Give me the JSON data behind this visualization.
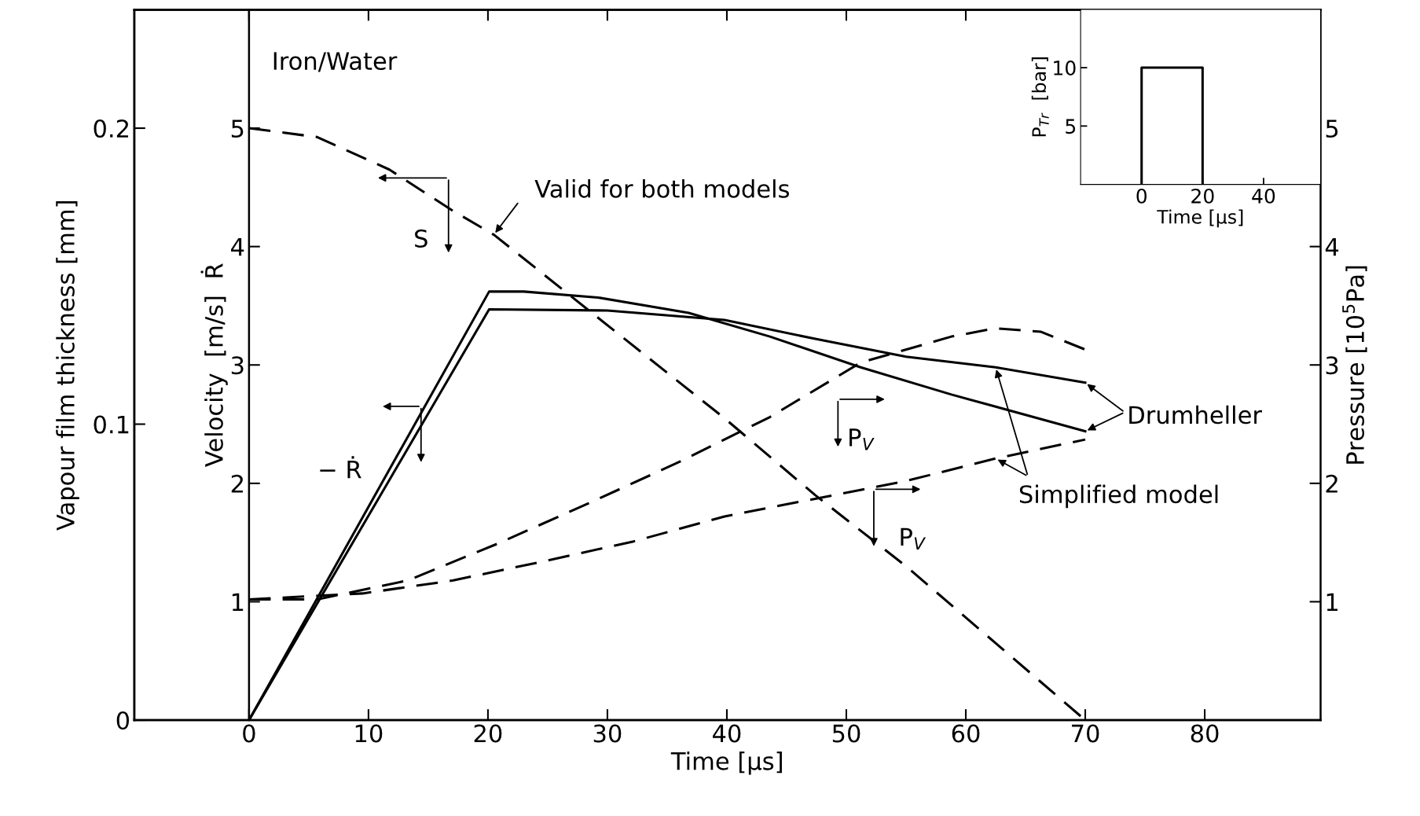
{
  "chart_data": [
    {
      "type": "line",
      "xlabel": "Time [µs]",
      "ylabel": "Velocity  [m/s]  Ṙ",
      "y2label": "Pressure [10$^{5}$Pa]",
      "y3label": "Vapour film thickness [mm]",
      "xlim": [
        -9.6,
        89.7
      ],
      "xticks": [
        0,
        10,
        20,
        30,
        40,
        50,
        60,
        70,
        80
      ],
      "ylim": [
        0,
        6
      ],
      "yticks": [
        1,
        2,
        3,
        4,
        5
      ],
      "y2lim": [
        0,
        6
      ],
      "y2ticks": [
        1,
        2,
        3,
        4,
        5
      ],
      "y3lim": [
        0,
        0.24
      ],
      "y3ticks": [
        0,
        0.1,
        0.2
      ],
      "grid": false,
      "legend": false,
      "series": [
        {
          "axis": "y3",
          "color": "#000000",
          "line_style": "dashed",
          "x": [
            0,
            5.7,
            11.75,
            17.1,
            20.5,
            29.2,
            39.8,
            47.4,
            55,
            62.5,
            70
          ],
          "values": [
            0.2,
            0.197,
            0.186,
            0.172,
            0.164,
            0.136,
            0.102,
            0.076,
            0.052,
            0.026,
            0
          ]
        },
        {
          "color": "#000000",
          "line_style": "solid",
          "x": [
            0,
            20.1,
            30,
            39.8,
            47.4,
            55,
            62.5,
            70
          ],
          "values": [
            0,
            3.47,
            3.46,
            3.38,
            3.22,
            3.07,
            2.98,
            2.85
          ]
        },
        {
          "color": "#000000",
          "line_style": "solid",
          "x": [
            0,
            20.1,
            23,
            29.2,
            36.8,
            43.6,
            51.2,
            58.8,
            70
          ],
          "values": [
            0,
            3.62,
            3.62,
            3.57,
            3.44,
            3.24,
            2.98,
            2.75,
            2.44
          ]
        },
        {
          "axis": "y2",
          "color": "#000000",
          "line_style": "dashed",
          "x": [
            0,
            5.7,
            13.3,
            20.8,
            28.4,
            36,
            43.6,
            51.2,
            58.8,
            62.5,
            66.3,
            70
          ],
          "values": [
            1.02,
            1.02,
            1.18,
            1.49,
            1.83,
            2.18,
            2.56,
            3.02,
            3.24,
            3.31,
            3.28,
            3.13
          ]
        },
        {
          "axis": "y2",
          "color": "#000000",
          "line_style": "dashed",
          "x": [
            0,
            9.5,
            17.1,
            24.6,
            32.2,
            39.8,
            47.4,
            55,
            62.5,
            70
          ],
          "values": [
            1.02,
            1.07,
            1.18,
            1.34,
            1.51,
            1.72,
            1.87,
            2.02,
            2.21,
            2.37
          ]
        }
      ],
      "annotations": [
        "Iron/Water",
        {
          "text": "Valid for both models",
          "x": 20.5,
          "y": 4.1
        },
        "S",
        "− Ṙ",
        "P$_{V}$",
        "P$_{V}$",
        {
          "text": "Drumheller",
          "x": 70,
          "y": 2.85
        },
        {
          "text": "Simplified model",
          "x": 62.5,
          "y": 2.98
        }
      ]
    },
    {
      "type": "line",
      "xlabel": "Time [µs]",
      "ylabel": "P$_{Tr}$  [bar]",
      "xlim": [
        -20,
        58.7
      ],
      "xticks": [
        0,
        20,
        40
      ],
      "ylim": [
        0,
        15
      ],
      "yticks": [
        5,
        10
      ],
      "grid": false,
      "legend": false,
      "series": [
        {
          "color": "#000000",
          "line_style": "solid",
          "x": [
            0,
            0,
            20,
            20
          ],
          "values": [
            0,
            10,
            10,
            0
          ]
        }
      ]
    }
  ]
}
